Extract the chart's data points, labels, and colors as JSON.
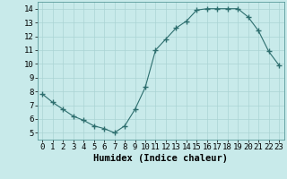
{
  "x": [
    0,
    1,
    2,
    3,
    4,
    5,
    6,
    7,
    8,
    9,
    10,
    11,
    12,
    13,
    14,
    15,
    16,
    17,
    18,
    19,
    20,
    21,
    22,
    23
  ],
  "y": [
    7.8,
    7.2,
    6.7,
    6.2,
    5.9,
    5.5,
    5.3,
    5.0,
    5.5,
    6.7,
    8.3,
    11.0,
    11.8,
    12.6,
    13.1,
    13.9,
    14.0,
    14.0,
    14.0,
    14.0,
    13.4,
    12.4,
    10.9,
    9.9
  ],
  "line_color": "#2d6e6e",
  "marker": "+",
  "bg_color": "#c8eaea",
  "grid_color": "#aad4d4",
  "xlabel": "Humidex (Indice chaleur)",
  "xlabel_fontsize": 7.5,
  "xlabel_fontweight": "bold",
  "tick_fontsize": 6.5,
  "xlim": [
    -0.5,
    23.5
  ],
  "ylim": [
    4.5,
    14.5
  ],
  "yticks": [
    5,
    6,
    7,
    8,
    9,
    10,
    11,
    12,
    13,
    14
  ],
  "xticks": [
    0,
    1,
    2,
    3,
    4,
    5,
    6,
    7,
    8,
    9,
    10,
    11,
    12,
    13,
    14,
    15,
    16,
    17,
    18,
    19,
    20,
    21,
    22,
    23
  ],
  "xtick_labels": [
    "0",
    "1",
    "2",
    "3",
    "4",
    "5",
    "6",
    "7",
    "8",
    "9",
    "10",
    "11",
    "12",
    "13",
    "14",
    "15",
    "16",
    "17",
    "18",
    "19",
    "20",
    "21",
    "22",
    "23"
  ],
  "linewidth": 0.8,
  "markersize": 4,
  "markeredgewidth": 1.0
}
